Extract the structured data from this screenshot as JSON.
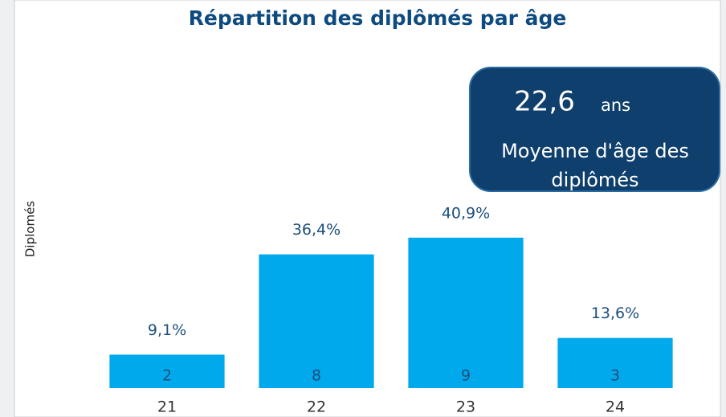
{
  "chart_data": {
    "type": "bar",
    "title": "Répartition des diplômés par âge",
    "y_label": "Diplomés",
    "categories": [
      "21",
      "22",
      "23",
      "24"
    ],
    "values": [
      2,
      8,
      9,
      3
    ],
    "color": "#00a9ec",
    "shares": [
      9.1,
      36.4,
      40.9,
      13.6
    ],
    "share_labels": [
      "9,1%",
      "36,4%",
      "40,9%",
      "13,6%"
    ],
    "ylim": [
      0,
      20
    ],
    "card": {
      "value": 22.6,
      "value_label": "22,6",
      "unit": "ans",
      "label_lines": [
        "Moyenne d'âge des",
        "diplômés"
      ]
    }
  }
}
